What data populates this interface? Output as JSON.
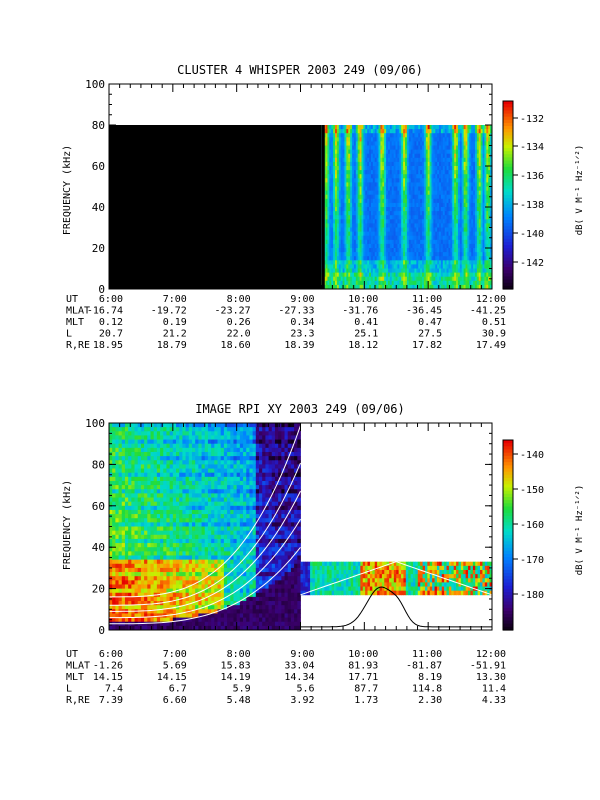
{
  "chart_data": [
    {
      "type": "heatmap",
      "title": "CLUSTER 4 WHISPER 2003 249 (09/06)",
      "ylabel": "FREQUENCY (kHz)",
      "ylim": [
        0,
        100
      ],
      "y_ticks": [
        "0",
        "20",
        "40",
        "60",
        "80",
        "100"
      ],
      "colorbar": {
        "label": "dB( V M⁻¹ Hz⁻¹ᐟ²)",
        "ticks": [
          "-132",
          "-134",
          "-136",
          "-138",
          "-140",
          "-142"
        ]
      },
      "ephemeris": {
        "row_labels": [
          "UT",
          "MLAT",
          "MLT",
          "L",
          "R,RE"
        ],
        "columns": [
          {
            "UT": "6:00",
            "MLAT": "-16.74",
            "MLT": "0.12",
            "L": "20.7",
            "R,RE": "18.95"
          },
          {
            "UT": "7:00",
            "MLAT": "-19.72",
            "MLT": "0.19",
            "L": "21.2",
            "R,RE": "18.79"
          },
          {
            "UT": "8:00",
            "MLAT": "-23.27",
            "MLT": "0.26",
            "L": "22.0",
            "R,RE": "18.60"
          },
          {
            "UT": "9:00",
            "MLAT": "-27.33",
            "MLT": "0.34",
            "L": "23.3",
            "R,RE": "18.39"
          },
          {
            "UT": "10:00",
            "MLAT": "-31.76",
            "MLT": "0.41",
            "L": "25.1",
            "R,RE": "18.12"
          },
          {
            "UT": "11:00",
            "MLAT": "-36.45",
            "MLT": "0.47",
            "L": "27.5",
            "R,RE": "17.82"
          },
          {
            "UT": "12:00",
            "MLAT": "-41.25",
            "MLT": "0.51",
            "L": "30.9",
            "R,RE": "17.49"
          }
        ]
      }
    },
    {
      "type": "heatmap",
      "title": "IMAGE RPI XY 2003 249 (09/06)",
      "ylabel": "FREQUENCY (kHz)",
      "ylim": [
        0,
        100
      ],
      "y_ticks": [
        "0",
        "20",
        "40",
        "60",
        "80",
        "100"
      ],
      "colorbar": {
        "label": "dB( V M⁻¹ Hz⁻¹ᐟ²)",
        "ticks": [
          "-140",
          "-150",
          "-160",
          "-170",
          "-180"
        ]
      },
      "ephemeris": {
        "row_labels": [
          "UT",
          "MLAT",
          "MLT",
          "L",
          "R,RE"
        ],
        "columns": [
          {
            "UT": "6:00",
            "MLAT": "-1.26",
            "MLT": "14.15",
            "L": "7.4",
            "R,RE": "7.39"
          },
          {
            "UT": "7:00",
            "MLAT": "5.69",
            "MLT": "14.15",
            "L": "6.7",
            "R,RE": "6.60"
          },
          {
            "UT": "8:00",
            "MLAT": "15.83",
            "MLT": "14.19",
            "L": "5.9",
            "R,RE": "5.48"
          },
          {
            "UT": "9:00",
            "MLAT": "33.04",
            "MLT": "14.34",
            "L": "5.6",
            "R,RE": "3.92"
          },
          {
            "UT": "10:00",
            "MLAT": "81.93",
            "MLT": "17.71",
            "L": "87.7",
            "R,RE": "1.73"
          },
          {
            "UT": "11:00",
            "MLAT": "-81.87",
            "MLT": "8.19",
            "L": "114.8",
            "R,RE": "2.30"
          },
          {
            "UT": "12:00",
            "MLAT": "-51.91",
            "MLT": "13.30",
            "L": "11.4",
            "R,RE": "4.33"
          }
        ]
      }
    }
  ]
}
